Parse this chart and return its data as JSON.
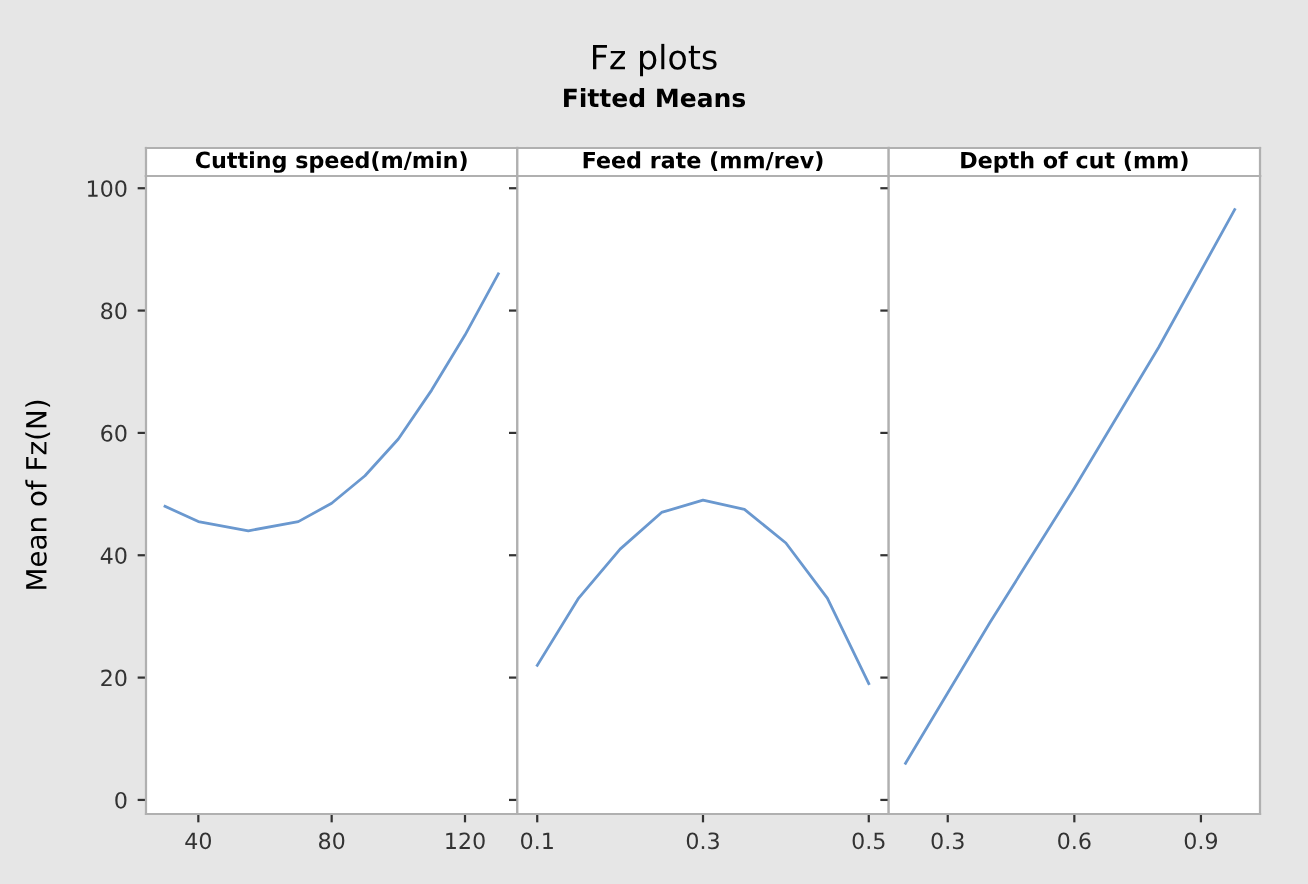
{
  "chart_data": [
    {
      "type": "line",
      "title": "Cutting speed(m/min)",
      "ylabel": "Mean of Fz(N)",
      "annotations": [
        "Fz plots",
        "Fitted Means"
      ],
      "x": [
        30,
        40,
        55,
        70,
        80,
        90,
        100,
        110,
        120,
        130
      ],
      "series": [
        {
          "color": "#6a98cf",
          "values": [
            48,
            45.5,
            44,
            45.5,
            48.5,
            53,
            59,
            67,
            76,
            86
          ]
        }
      ],
      "xlim": [
        24.3,
        135.7
      ],
      "xticks": [
        40,
        80,
        120
      ],
      "ylim": [
        -2.3,
        102
      ],
      "yticks": [
        0,
        20,
        40,
        60,
        80,
        100
      ],
      "grid": false,
      "legend": false
    },
    {
      "type": "line",
      "title": "Feed rate (mm/rev)",
      "x": [
        0.1,
        0.15,
        0.2,
        0.25,
        0.3,
        0.35,
        0.4,
        0.45,
        0.5
      ],
      "series": [
        {
          "color": "#6a98cf",
          "values": [
            22,
            33,
            41,
            47,
            49,
            47.5,
            42,
            33,
            19
          ]
        }
      ],
      "xlim": [
        0.076,
        0.524
      ],
      "xticks": [
        0.1,
        0.3,
        0.5
      ],
      "ylim": [
        -2.3,
        102
      ],
      "yticks": [
        0,
        20,
        40,
        60,
        80,
        100
      ],
      "tick_labels": "x",
      "grid": false,
      "legend": false
    },
    {
      "type": "line",
      "title": "Depth of cut (mm)",
      "x": [
        0.2,
        0.4,
        0.6,
        0.8,
        0.98
      ],
      "series": [
        {
          "color": "#6a98cf",
          "values": [
            6,
            29,
            51,
            74,
            96.5
          ]
        }
      ],
      "xlim": [
        0.16,
        1.04
      ],
      "xticks": [
        0.3,
        0.6,
        0.9
      ],
      "ylim": [
        -2.3,
        102
      ],
      "yticks": [
        0,
        20,
        40,
        60,
        80,
        100
      ],
      "tick_labels": "x",
      "grid": false,
      "legend": false
    }
  ]
}
